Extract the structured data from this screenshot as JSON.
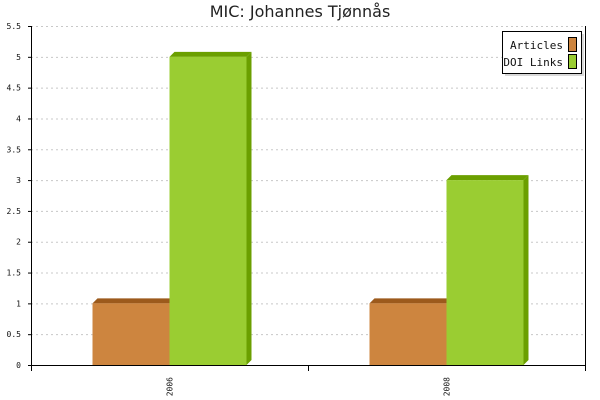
{
  "chart_data": {
    "type": "bar",
    "title": "MIC: Johannes Tjønnås",
    "categories": [
      "2006",
      "2008"
    ],
    "series": [
      {
        "name": "Articles",
        "values": [
          1,
          1
        ],
        "color": "#cd853f",
        "top_color": "#9c5a1c"
      },
      {
        "name": "DOI Links",
        "values": [
          5,
          3
        ],
        "color": "#9acd32",
        "top_color": "#6b9f00"
      }
    ],
    "ylim": [
      0,
      5.5
    ],
    "yticks": [
      "0",
      "0.5",
      "1",
      "1.5",
      "2",
      "2.5",
      "3",
      "3.5",
      "4",
      "4.5",
      "5",
      "5.5"
    ],
    "grid": true,
    "legend_position": "top-right"
  }
}
